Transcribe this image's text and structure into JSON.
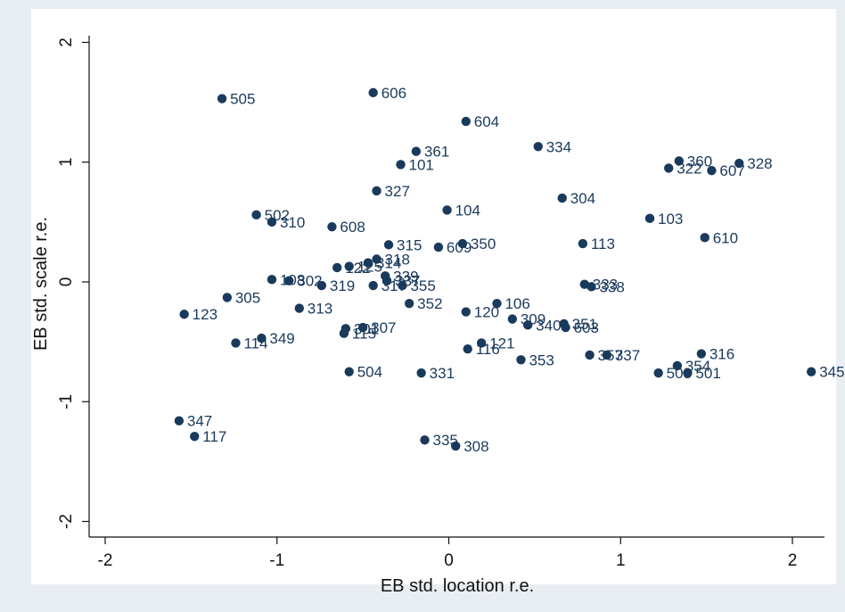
{
  "chart_data": {
    "type": "scatter",
    "title": "",
    "xlabel": "EB std. location r.e.",
    "ylabel": "EB std. scale r.e.",
    "xlim": [
      -2.1,
      2.2
    ],
    "ylim": [
      -2.1,
      2.1
    ],
    "xticks": [
      -2,
      -1,
      0,
      1,
      2
    ],
    "yticks": [
      -2,
      -1,
      0,
      1,
      2
    ],
    "grid": false,
    "colors": {
      "background": "#e9eef3",
      "plot": "#ffffff",
      "marker": "#1a3a5c"
    },
    "series": [
      {
        "points": [
          {
            "label": "505",
            "x": -1.32,
            "y": 1.53
          },
          {
            "label": "606",
            "x": -0.44,
            "y": 1.58
          },
          {
            "label": "604",
            "x": 0.1,
            "y": 1.34
          },
          {
            "label": "334",
            "x": 0.52,
            "y": 1.13
          },
          {
            "label": "361",
            "x": -0.19,
            "y": 1.09
          },
          {
            "label": "101",
            "x": -0.28,
            "y": 0.98
          },
          {
            "label": "360",
            "x": 1.34,
            "y": 1.01
          },
          {
            "label": "322",
            "x": 1.28,
            "y": 0.95
          },
          {
            "label": "328",
            "x": 1.69,
            "y": 0.99
          },
          {
            "label": "607",
            "x": 1.53,
            "y": 0.93
          },
          {
            "label": "327",
            "x": -0.42,
            "y": 0.76
          },
          {
            "label": "304",
            "x": 0.66,
            "y": 0.7
          },
          {
            "label": "502",
            "x": -1.12,
            "y": 0.56
          },
          {
            "label": "310",
            "x": -1.03,
            "y": 0.5
          },
          {
            "label": "104",
            "x": -0.01,
            "y": 0.6
          },
          {
            "label": "103",
            "x": 1.17,
            "y": 0.53
          },
          {
            "label": "608",
            "x": -0.68,
            "y": 0.46
          },
          {
            "label": "610",
            "x": 1.49,
            "y": 0.37
          },
          {
            "label": "315",
            "x": -0.35,
            "y": 0.31
          },
          {
            "label": "609",
            "x": -0.06,
            "y": 0.29
          },
          {
            "label": "350",
            "x": 0.08,
            "y": 0.32
          },
          {
            "label": "113",
            "x": 0.78,
            "y": 0.32
          },
          {
            "label": "318",
            "x": -0.42,
            "y": 0.19
          },
          {
            "label": "314",
            "x": -0.47,
            "y": 0.16
          },
          {
            "label": "125",
            "x": -0.58,
            "y": 0.13
          },
          {
            "label": "122",
            "x": -0.65,
            "y": 0.12
          },
          {
            "label": "339",
            "x": -0.37,
            "y": 0.05
          },
          {
            "label": "337",
            "x": -0.36,
            "y": 0.01
          },
          {
            "label": "108",
            "x": -1.03,
            "y": 0.02
          },
          {
            "label": "302",
            "x": -0.93,
            "y": 0.01
          },
          {
            "label": "319",
            "x": -0.74,
            "y": -0.03
          },
          {
            "label": "317",
            "x": -0.44,
            "y": -0.03
          },
          {
            "label": "355",
            "x": -0.27,
            "y": -0.03
          },
          {
            "label": "333",
            "x": 0.79,
            "y": -0.02
          },
          {
            "label": "338",
            "x": 0.83,
            "y": -0.04
          },
          {
            "label": "305",
            "x": -1.29,
            "y": -0.13
          },
          {
            "label": "352",
            "x": -0.23,
            "y": -0.18
          },
          {
            "label": "106",
            "x": 0.28,
            "y": -0.18
          },
          {
            "label": "313",
            "x": -0.87,
            "y": -0.22
          },
          {
            "label": "120",
            "x": 0.1,
            "y": -0.25
          },
          {
            "label": "123",
            "x": -1.54,
            "y": -0.27
          },
          {
            "label": "309",
            "x": 0.37,
            "y": -0.31
          },
          {
            "label": "340",
            "x": 0.46,
            "y": -0.36
          },
          {
            "label": "351",
            "x": 0.67,
            "y": -0.35
          },
          {
            "label": "603",
            "x": 0.68,
            "y": -0.38
          },
          {
            "label": "307",
            "x": -0.5,
            "y": -0.38
          },
          {
            "label": "301",
            "x": -0.6,
            "y": -0.39
          },
          {
            "label": "115",
            "x": -0.61,
            "y": -0.43
          },
          {
            "label": "349",
            "x": -1.09,
            "y": -0.47
          },
          {
            "label": "114",
            "x": -1.24,
            "y": -0.51
          },
          {
            "label": "121",
            "x": 0.19,
            "y": -0.51
          },
          {
            "label": "116",
            "x": 0.11,
            "y": -0.56
          },
          {
            "label": "316",
            "x": 1.47,
            "y": -0.6
          },
          {
            "label": "357",
            "x": 0.82,
            "y": -0.61
          },
          {
            "label": "337",
            "x": 0.92,
            "y": -0.61
          },
          {
            "label": "353",
            "x": 0.42,
            "y": -0.65
          },
          {
            "label": "354",
            "x": 1.33,
            "y": -0.7
          },
          {
            "label": "504",
            "x": -0.58,
            "y": -0.75
          },
          {
            "label": "331",
            "x": -0.16,
            "y": -0.76
          },
          {
            "label": "503",
            "x": 1.22,
            "y": -0.76
          },
          {
            "label": "501",
            "x": 1.39,
            "y": -0.76
          },
          {
            "label": "345",
            "x": 2.11,
            "y": -0.75
          },
          {
            "label": "347",
            "x": -1.57,
            "y": -1.16
          },
          {
            "label": "117",
            "x": -1.48,
            "y": -1.29
          },
          {
            "label": "335",
            "x": -0.14,
            "y": -1.32
          },
          {
            "label": "308",
            "x": 0.04,
            "y": -1.37
          }
        ]
      }
    ]
  }
}
